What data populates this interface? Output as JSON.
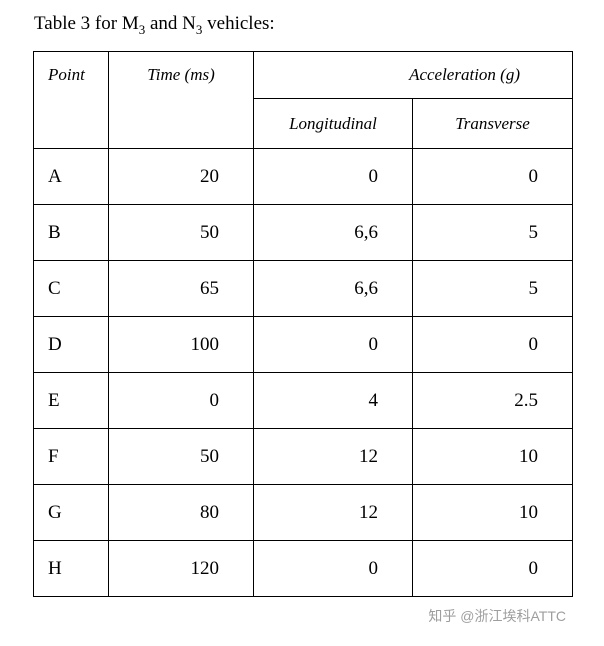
{
  "title": {
    "part1": "Table 3 for M",
    "sub1": "3",
    "part2": " and N",
    "sub2": "3",
    "part3": " vehicles:"
  },
  "table": {
    "headers": {
      "point": "Point",
      "time": "Time (ms)",
      "acceleration": "Acceleration (g)",
      "longitudinal": "Longitudinal",
      "transverse": "Transverse"
    },
    "rows": [
      {
        "point": "A",
        "time": "20",
        "longitudinal": "0",
        "transverse": "0"
      },
      {
        "point": "B",
        "time": "50",
        "longitudinal": "6,6",
        "transverse": "5"
      },
      {
        "point": "C",
        "time": "65",
        "longitudinal": "6,6",
        "transverse": "5"
      },
      {
        "point": "D",
        "time": "100",
        "longitudinal": "0",
        "transverse": "0"
      },
      {
        "point": "E",
        "time": "0",
        "longitudinal": "4",
        "transverse": "2.5"
      },
      {
        "point": "F",
        "time": "50",
        "longitudinal": "12",
        "transverse": "10"
      },
      {
        "point": "G",
        "time": "80",
        "longitudinal": "12",
        "transverse": "10"
      },
      {
        "point": "H",
        "time": "120",
        "longitudinal": "0",
        "transverse": "0"
      }
    ]
  },
  "watermark": {
    "text": "知乎 @浙江埃科ATTC",
    "color": "#9e9e9e"
  }
}
